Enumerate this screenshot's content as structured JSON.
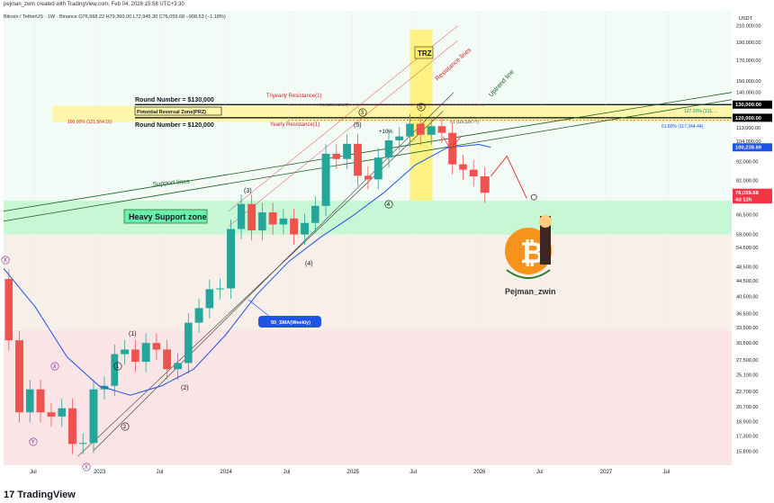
{
  "header": {
    "creator": "pejman_zwin created with TradingView.com, Feb 04, 2026 15:58 UTC+3:30",
    "symbol": "Bitcoin / TetherUS · 1W · Binance",
    "ohlc": "O76,968.22 H79,360.00 L72,945.30 C76,059.68 −908.53 (−1.18%)"
  },
  "footer": {
    "brand": "TradingView"
  },
  "chart_data": {
    "type": "candlestick",
    "symbol": "BTC/USDT",
    "timeframe": "1W",
    "currency": "USDT",
    "yscale": "log",
    "ylim": [
      14500,
      230000
    ],
    "xlim": [
      "2022-04-01",
      "2027-12-31"
    ],
    "x_ticks": [
      "Jul",
      "2023",
      "Jul",
      "2024",
      "Jul",
      "2025",
      "Jul",
      "2026",
      "Jul",
      "2027",
      "Jul"
    ],
    "x_tick_dates": [
      "2022-07-01",
      "2023-01-01",
      "2023-07-01",
      "2024-01-01",
      "2024-07-01",
      "2025-01-01",
      "2025-07-01",
      "2026-01-01",
      "2026-07-01",
      "2027-01-01",
      "2027-07-01"
    ],
    "y_ticks": [
      "210,000.00",
      "190,000.00",
      "170,000.00",
      "150,000.00",
      "140,000.00",
      "130,000.00",
      "120,000.00",
      "113,000.00",
      "104,000.00",
      "92,000.00",
      "82,000.00",
      "74,000.00",
      "66,500.00",
      "59,000.00",
      "54,500.00",
      "48,500.00",
      "44,500.00",
      "40,500.00",
      "36,500.00",
      "33,500.00",
      "30,500.00",
      "27,500.00",
      "25,100.00",
      "22,700.00",
      "20,700.00",
      "18,900.00",
      "17,300.00",
      "15,800.00"
    ],
    "y_tick_values": [
      210000,
      190000,
      170000,
      150000,
      140000,
      130000,
      120000,
      113000,
      104000,
      92000,
      82000,
      74000,
      66500,
      59000,
      54500,
      48500,
      44500,
      40500,
      36500,
      33500,
      30500,
      27500,
      25100,
      22700,
      20700,
      18900,
      17300,
      15800
    ],
    "series": [
      {
        "name": "BTC/USDT",
        "points": [
          [
            "2022-04-01",
            45000
          ],
          [
            "2022-05-01",
            31000
          ],
          [
            "2022-06-01",
            20000
          ],
          [
            "2022-07-01",
            23000
          ],
          [
            "2022-08-01",
            20000
          ],
          [
            "2022-09-01",
            19500
          ],
          [
            "2022-10-01",
            20500
          ],
          [
            "2022-11-01",
            16500
          ],
          [
            "2022-12-01",
            16600
          ],
          [
            "2023-01-01",
            23000
          ],
          [
            "2023-02-01",
            23500
          ],
          [
            "2023-03-01",
            28500
          ],
          [
            "2023-04-01",
            29300
          ],
          [
            "2023-05-01",
            27200
          ],
          [
            "2023-06-01",
            30500
          ],
          [
            "2023-07-01",
            29300
          ],
          [
            "2023-08-01",
            26000
          ],
          [
            "2023-09-01",
            27000
          ],
          [
            "2023-10-01",
            34500
          ],
          [
            "2023-11-01",
            37700
          ],
          [
            "2023-12-01",
            42300
          ],
          [
            "2024-01-01",
            42500
          ],
          [
            "2024-02-01",
            61000
          ],
          [
            "2024-03-01",
            71000
          ],
          [
            "2024-04-01",
            60500
          ],
          [
            "2024-05-01",
            67500
          ],
          [
            "2024-06-01",
            62700
          ],
          [
            "2024-07-01",
            65000
          ],
          [
            "2024-08-01",
            59000
          ],
          [
            "2024-09-01",
            63300
          ],
          [
            "2024-10-01",
            70200
          ],
          [
            "2024-11-01",
            96400
          ],
          [
            "2024-12-01",
            93400
          ],
          [
            "2025-01-01",
            102400
          ],
          [
            "2025-02-01",
            84300
          ],
          [
            "2025-03-01",
            82500
          ],
          [
            "2025-04-01",
            94200
          ],
          [
            "2025-05-01",
            104600
          ],
          [
            "2025-06-01",
            107100
          ],
          [
            "2025-07-01",
            115700
          ],
          [
            "2025-08-01",
            108200
          ],
          [
            "2025-09-01",
            114000
          ],
          [
            "2025-10-01",
            109500
          ],
          [
            "2025-11-01",
            90400
          ],
          [
            "2025-12-01",
            87500
          ],
          [
            "2026-01-01",
            84000
          ],
          [
            "2026-02-04",
            76059.68
          ]
        ]
      },
      {
        "name": "50_SMA(Weekly)",
        "points": [
          [
            "2022-04-01",
            48000
          ],
          [
            "2022-07-01",
            38000
          ],
          [
            "2022-10-01",
            28000
          ],
          [
            "2023-01-01",
            23500
          ],
          [
            "2023-04-01",
            22200
          ],
          [
            "2023-07-01",
            23500
          ],
          [
            "2023-10-01",
            26000
          ],
          [
            "2024-01-01",
            32000
          ],
          [
            "2024-04-01",
            41000
          ],
          [
            "2024-07-01",
            50000
          ],
          [
            "2024-10-01",
            58000
          ],
          [
            "2025-01-01",
            66000
          ],
          [
            "2025-04-01",
            76000
          ],
          [
            "2025-07-01",
            90000
          ],
          [
            "2025-10-01",
            100000
          ],
          [
            "2026-01-01",
            102000
          ],
          [
            "2026-02-04",
            100238.69
          ]
        ]
      }
    ],
    "price_labels": [
      {
        "text": "130,000.00",
        "value": 130000,
        "color": "#000000"
      },
      {
        "text": "120,000.00",
        "value": 120000,
        "color": "#000000"
      },
      {
        "text": "100,238.69",
        "value": 100238.69,
        "color": "#1e53e5"
      },
      {
        "text": "76,059.68",
        "value": 76059.68,
        "color": "#f23645"
      },
      {
        "text": "4d 12h",
        "value": 73000,
        "color": "#f23645"
      }
    ],
    "annotations": {
      "round_130": "Round Number = $130,000",
      "round_120": "Round Number = $120,000",
      "prz": "Potential Reversal Zone(PRZ)",
      "triyearly": "Triyearly Resistance(1)",
      "yearly": "Yearly Resistance(1)",
      "trz": "TRZ",
      "resistance_lines": "Resistance lines",
      "uptrend_line": "Uptrend line",
      "support_lines": "Support lines",
      "heavy_support": "Heavy Support zone",
      "sma_label": "50_SMA(Weekly)",
      "fib_100": "100.00% (121,564.16)",
      "fib_127": "127.20% (131,…",
      "fib_618": "61.80% (117,344.44)",
      "r1": "R1 (129,460.87)",
      "s1": "S1 (118,328.77)",
      "plus10": "+10%",
      "author": "Pejman_zwin",
      "waves": [
        "(1)",
        "(2)",
        "(3)",
        "(4)",
        "(5)",
        "1",
        "2",
        "3",
        "4",
        "5",
        "X",
        "X",
        "Y",
        "X"
      ]
    },
    "colors": {
      "up": "#26a69a",
      "down": "#ef5350",
      "sma": "#1e53e5",
      "prz_zone": "#fff59d",
      "support_zone": "#b9f6ca",
      "forecast": "#e53935"
    }
  }
}
